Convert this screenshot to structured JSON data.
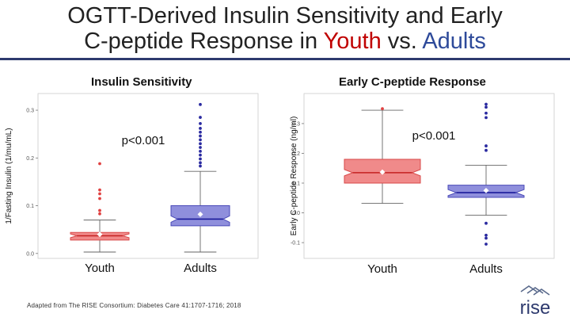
{
  "title": {
    "line1": "OGTT-Derived Insulin Sensitivity and Early",
    "line2_prefix": "C-peptide Response in ",
    "line2_youth": "Youth",
    "line2_mid": " vs. ",
    "line2_adults": "Adults"
  },
  "footer": "Adapted from The RISE Consortium: Diabetes Care 41:1707-1716; 2018",
  "logo_text": "rise",
  "colors": {
    "youth_fill": "#f08a8a",
    "youth_stroke": "#d84a4a",
    "youth_median": "#c42020",
    "adult_fill": "#8f8fdc",
    "adult_stroke": "#4a4ab8",
    "adult_median": "#1a1a9a",
    "outlier_youth": "#e04040",
    "outlier_adult": "#2a2aa0",
    "title_accent_red": "#c00000",
    "title_accent_blue": "#2e4a9a",
    "rule": "#2e3a6e"
  },
  "chart_data": [
    {
      "type": "boxplot",
      "title": "Insulin Sensitivity",
      "ylabel": "1/Fasting Insulin (1/mu/mL)",
      "xlabel": "",
      "ylim": [
        -0.002,
        0.32
      ],
      "yticks": [
        0.0,
        0.1,
        0.2,
        0.3
      ],
      "ytick_labels": [
        "0.0",
        "0.1",
        "0.2",
        "0.3"
      ],
      "categories": [
        "Youth",
        "Adults"
      ],
      "annotation": "p<0.001",
      "boxes": [
        {
          "name": "Youth",
          "whisker_low": 0.003,
          "q1": 0.028,
          "median": 0.037,
          "q3": 0.044,
          "whisker_high": 0.07,
          "mean": 0.04,
          "outliers": [
            0.083,
            0.09,
            0.115,
            0.125,
            0.133,
            0.188
          ]
        },
        {
          "name": "Adults",
          "whisker_low": 0.003,
          "q1": 0.058,
          "median": 0.072,
          "q3": 0.1,
          "whisker_high": 0.172,
          "mean": 0.082,
          "outliers": [
            0.183,
            0.19,
            0.198,
            0.206,
            0.214,
            0.222,
            0.23,
            0.238,
            0.246,
            0.254,
            0.262,
            0.272,
            0.285,
            0.312
          ]
        }
      ]
    },
    {
      "type": "boxplot",
      "title": "Early C-peptide Response",
      "ylabel": "Early C-peptide Response (ng/ml)",
      "xlabel": "",
      "ylim": [
        -0.145,
        0.385
      ],
      "yticks": [
        -0.1,
        0.0,
        0.1,
        0.2,
        0.3
      ],
      "ytick_labels": [
        "-0.1",
        "0.0",
        "0.1",
        "0.2",
        "0.3"
      ],
      "categories": [
        "Youth",
        "Adults"
      ],
      "annotation": "p<0.001",
      "boxes": [
        {
          "name": "Youth",
          "whisker_low": 0.032,
          "q1": 0.1,
          "median": 0.135,
          "q3": 0.18,
          "whisker_high": 0.345,
          "mean": 0.137,
          "outliers": [
            0.35
          ]
        },
        {
          "name": "Adults",
          "whisker_low": -0.008,
          "q1": 0.052,
          "median": 0.068,
          "q3": 0.093,
          "whisker_high": 0.16,
          "mean": 0.075,
          "outliers": [
            -0.035,
            -0.075,
            -0.085,
            -0.105,
            0.21,
            0.225,
            0.32,
            0.335,
            0.355,
            0.365
          ]
        }
      ]
    }
  ]
}
